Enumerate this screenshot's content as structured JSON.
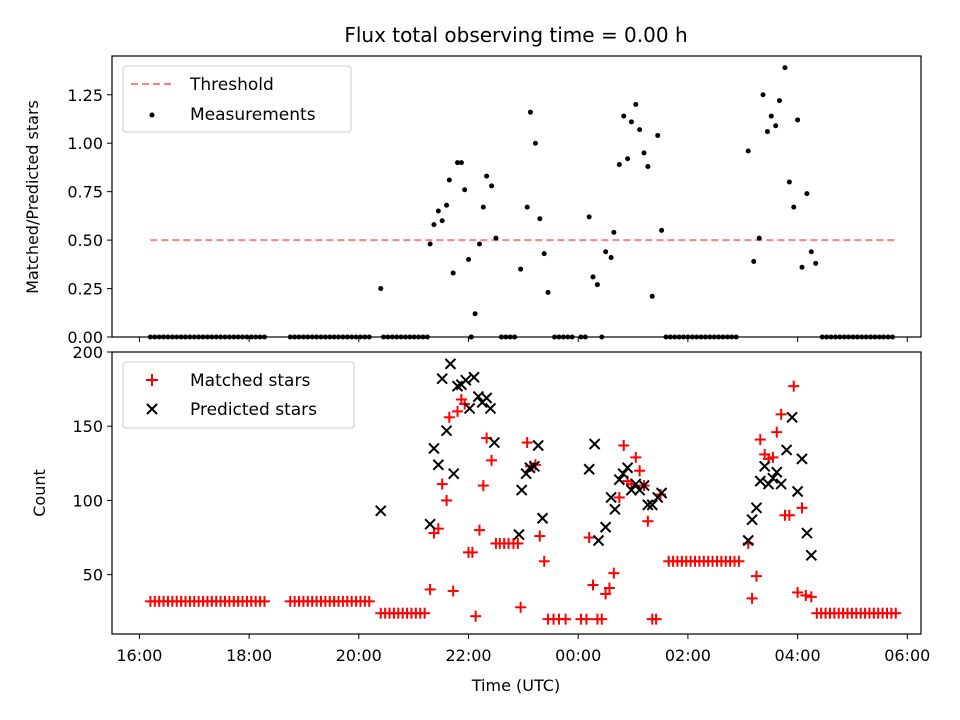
{
  "title": "Flux total observing time = 0.00 h",
  "xlabel": "Time (UTC)",
  "chart_data": [
    {
      "type": "scatter",
      "ylabel": "Matched/Predicted stars",
      "ylim": [
        0,
        1.45
      ],
      "xlim": [
        -0.5,
        14.25
      ],
      "yticks": [
        0.0,
        0.25,
        0.5,
        0.75,
        1.0,
        1.25
      ],
      "ytick_labels": [
        "0.00",
        "0.25",
        "0.50",
        "0.75",
        "1.00",
        "1.25"
      ],
      "legend": [
        "Threshold",
        "Measurements"
      ],
      "legend_position": "top-left",
      "threshold": {
        "name": "Threshold",
        "value": 0.5,
        "x_range": [
          0.2,
          13.8
        ],
        "color": "#ff8080",
        "style": "dashed"
      },
      "series": [
        {
          "name": "Measurements",
          "color": "#000000",
          "marker": "dot",
          "points": [
            [
              4.4,
              0.25
            ],
            [
              5.3,
              0.48
            ],
            [
              5.37,
              0.58
            ],
            [
              5.45,
              0.65
            ],
            [
              5.52,
              0.6
            ],
            [
              5.6,
              0.68
            ],
            [
              5.65,
              0.81
            ],
            [
              5.72,
              0.33
            ],
            [
              5.8,
              0.9
            ],
            [
              5.87,
              0.9
            ],
            [
              5.93,
              0.76
            ],
            [
              6.0,
              0.4
            ],
            [
              6.05,
              0.0
            ],
            [
              6.12,
              0.12
            ],
            [
              6.2,
              0.48
            ],
            [
              6.27,
              0.67
            ],
            [
              6.33,
              0.83
            ],
            [
              6.42,
              0.78
            ],
            [
              6.5,
              0.51
            ],
            [
              6.95,
              0.35
            ],
            [
              7.07,
              0.67
            ],
            [
              7.13,
              1.16
            ],
            [
              7.22,
              1.0
            ],
            [
              7.3,
              0.61
            ],
            [
              7.38,
              0.43
            ],
            [
              7.45,
              0.23
            ],
            [
              8.2,
              0.62
            ],
            [
              8.27,
              0.31
            ],
            [
              8.35,
              0.27
            ],
            [
              8.5,
              0.44
            ],
            [
              8.6,
              0.41
            ],
            [
              8.65,
              0.54
            ],
            [
              8.75,
              0.89
            ],
            [
              8.83,
              1.14
            ],
            [
              8.9,
              0.92
            ],
            [
              8.97,
              1.11
            ],
            [
              9.05,
              1.2
            ],
            [
              9.12,
              1.07
            ],
            [
              9.2,
              0.95
            ],
            [
              9.27,
              0.88
            ],
            [
              9.35,
              0.21
            ],
            [
              9.45,
              1.04
            ],
            [
              9.52,
              0.55
            ],
            [
              11.1,
              0.96
            ],
            [
              11.2,
              0.39
            ],
            [
              11.3,
              0.51
            ],
            [
              11.37,
              1.25
            ],
            [
              11.45,
              1.06
            ],
            [
              11.52,
              1.14
            ],
            [
              11.6,
              1.09
            ],
            [
              11.67,
              1.22
            ],
            [
              11.77,
              1.39
            ],
            [
              11.85,
              0.8
            ],
            [
              11.93,
              0.67
            ],
            [
              12.0,
              1.12
            ],
            [
              12.08,
              0.36
            ],
            [
              12.17,
              0.74
            ],
            [
              12.25,
              0.44
            ],
            [
              12.33,
              0.38
            ]
          ],
          "zero_ranges": [
            [
              0.2,
              2.3
            ],
            [
              2.75,
              4.25
            ],
            [
              4.45,
              5.25
            ],
            [
              6.05,
              6.1
            ],
            [
              6.6,
              6.85
            ],
            [
              7.57,
              7.95
            ],
            [
              8.05,
              8.15
            ],
            [
              8.43,
              8.5
            ],
            [
              9.6,
              10.9
            ],
            [
              12.45,
              13.8
            ]
          ]
        }
      ]
    },
    {
      "type": "scatter",
      "ylabel": "Count",
      "ylim": [
        10,
        200
      ],
      "xlim": [
        -0.5,
        14.25
      ],
      "yticks": [
        50,
        100,
        150,
        200
      ],
      "ytick_labels": [
        "50",
        "100",
        "150",
        "200"
      ],
      "xticks": [
        0,
        2,
        4,
        6,
        8,
        10,
        12,
        14
      ],
      "xtick_labels": [
        "16:00",
        "18:00",
        "20:00",
        "22:00",
        "00:00",
        "02:00",
        "04:00",
        "06:00"
      ],
      "legend": [
        "Matched stars",
        "Predicted stars"
      ],
      "legend_position": "top-left",
      "series": [
        {
          "name": "Matched stars",
          "color": "#ff0000",
          "marker": "plus",
          "constant_ranges": [
            [
              0.2,
              2.3,
              32
            ],
            [
              2.75,
              4.25,
              32
            ],
            [
              4.4,
              5.25,
              24
            ],
            [
              9.65,
              11.0,
              59
            ],
            [
              12.35,
              13.8,
              24
            ]
          ],
          "points": [
            [
              5.3,
              40
            ],
            [
              5.37,
              78
            ],
            [
              5.45,
              81
            ],
            [
              5.52,
              111
            ],
            [
              5.6,
              100
            ],
            [
              5.65,
              156
            ],
            [
              5.72,
              39
            ],
            [
              5.8,
              160
            ],
            [
              5.87,
              168
            ],
            [
              5.93,
              165
            ],
            [
              6.0,
              65
            ],
            [
              6.07,
              65
            ],
            [
              6.13,
              22
            ],
            [
              6.2,
              80
            ],
            [
              6.27,
              110
            ],
            [
              6.33,
              142
            ],
            [
              6.42,
              127
            ],
            [
              6.5,
              71
            ],
            [
              6.57,
              71
            ],
            [
              6.65,
              71
            ],
            [
              6.73,
              71
            ],
            [
              6.82,
              71
            ],
            [
              6.9,
              71
            ],
            [
              6.95,
              28
            ],
            [
              7.07,
              139
            ],
            [
              7.13,
              123
            ],
            [
              7.22,
              124
            ],
            [
              7.3,
              76
            ],
            [
              7.38,
              59
            ],
            [
              7.45,
              20
            ],
            [
              7.55,
              20
            ],
            [
              7.65,
              20
            ],
            [
              7.77,
              20
            ],
            [
              8.05,
              20
            ],
            [
              8.15,
              20
            ],
            [
              8.2,
              75
            ],
            [
              8.27,
              43
            ],
            [
              8.35,
              20
            ],
            [
              8.43,
              20
            ],
            [
              8.5,
              37
            ],
            [
              8.57,
              41
            ],
            [
              8.65,
              51
            ],
            [
              8.75,
              102
            ],
            [
              8.83,
              137
            ],
            [
              8.9,
              113
            ],
            [
              8.97,
              111
            ],
            [
              9.05,
              129
            ],
            [
              9.12,
              120
            ],
            [
              9.2,
              110
            ],
            [
              9.27,
              86
            ],
            [
              9.35,
              20
            ],
            [
              9.42,
              20
            ],
            [
              9.5,
              104
            ],
            [
              11.1,
              71
            ],
            [
              11.17,
              34
            ],
            [
              11.25,
              49
            ],
            [
              11.32,
              141
            ],
            [
              11.4,
              131
            ],
            [
              11.47,
              128
            ],
            [
              11.55,
              129
            ],
            [
              11.62,
              146
            ],
            [
              11.7,
              158
            ],
            [
              11.77,
              90
            ],
            [
              11.85,
              90
            ],
            [
              11.93,
              177
            ],
            [
              12.0,
              38
            ],
            [
              12.08,
              95
            ],
            [
              12.15,
              36
            ],
            [
              12.25,
              35
            ]
          ]
        },
        {
          "name": "Predicted stars",
          "color": "#000000",
          "marker": "x",
          "points": [
            [
              4.4,
              93
            ],
            [
              5.3,
              84
            ],
            [
              5.37,
              135
            ],
            [
              5.45,
              124
            ],
            [
              5.52,
              182
            ],
            [
              5.6,
              147
            ],
            [
              5.67,
              192
            ],
            [
              5.73,
              118
            ],
            [
              5.8,
              177
            ],
            [
              5.87,
              178
            ],
            [
              5.95,
              181
            ],
            [
              6.02,
              162
            ],
            [
              6.1,
              183
            ],
            [
              6.18,
              170
            ],
            [
              6.25,
              166
            ],
            [
              6.33,
              169
            ],
            [
              6.4,
              162
            ],
            [
              6.47,
              139
            ],
            [
              6.92,
              77
            ],
            [
              6.97,
              107
            ],
            [
              7.05,
              118
            ],
            [
              7.12,
              122
            ],
            [
              7.2,
              123
            ],
            [
              7.27,
              137
            ],
            [
              7.35,
              88
            ],
            [
              8.2,
              121
            ],
            [
              8.3,
              138
            ],
            [
              8.37,
              73
            ],
            [
              8.5,
              82
            ],
            [
              8.6,
              102
            ],
            [
              8.67,
              94
            ],
            [
              8.75,
              114
            ],
            [
              8.82,
              118
            ],
            [
              8.9,
              122
            ],
            [
              8.97,
              107
            ],
            [
              9.05,
              111
            ],
            [
              9.12,
              107
            ],
            [
              9.2,
              110
            ],
            [
              9.27,
              97
            ],
            [
              9.35,
              97
            ],
            [
              9.45,
              102
            ],
            [
              9.52,
              105
            ],
            [
              11.1,
              73
            ],
            [
              11.17,
              87
            ],
            [
              11.25,
              95
            ],
            [
              11.32,
              113
            ],
            [
              11.4,
              123
            ],
            [
              11.47,
              111
            ],
            [
              11.55,
              115
            ],
            [
              11.62,
              119
            ],
            [
              11.7,
              111
            ],
            [
              11.8,
              134
            ],
            [
              11.9,
              156
            ],
            [
              12.0,
              106
            ],
            [
              12.08,
              128
            ],
            [
              12.17,
              78
            ],
            [
              12.25,
              63
            ]
          ]
        }
      ]
    }
  ]
}
